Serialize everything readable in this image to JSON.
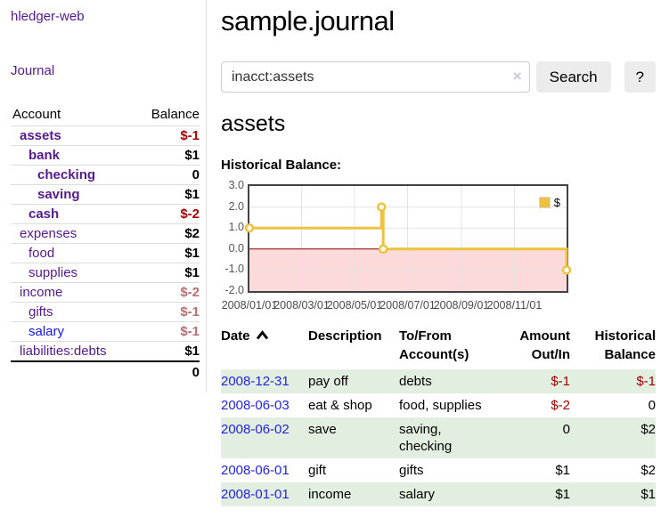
{
  "app": {
    "title": "hledger-web"
  },
  "colors": {
    "accent_purple": "#551a8b",
    "link_blue": "#1515e0",
    "negative_red": "#a40000",
    "faded_negative": "#b86f6f",
    "row_stripe_green": "#e2eedf",
    "series_gold": "#edc240",
    "negative_region_pink": "#fcdada",
    "zero_line_red": "#8b0000"
  },
  "sidebar": {
    "journal_link": "Journal",
    "accounts_table": {
      "headers": {
        "account": "Account",
        "balance": "Balance"
      },
      "rows": [
        {
          "name": "assets",
          "indent": 1,
          "bold": true,
          "blue": false,
          "balance": "$-1",
          "balance_style": "negstrong"
        },
        {
          "name": "bank",
          "indent": 2,
          "bold": true,
          "blue": false,
          "balance": "$1",
          "balance_style": "normal"
        },
        {
          "name": "checking",
          "indent": 3,
          "bold": true,
          "blue": false,
          "balance": "0",
          "balance_style": "normal"
        },
        {
          "name": "saving",
          "indent": 3,
          "bold": true,
          "blue": false,
          "balance": "$1",
          "balance_style": "normal"
        },
        {
          "name": "cash",
          "indent": 2,
          "bold": true,
          "blue": false,
          "balance": "$-2",
          "balance_style": "negstrong"
        },
        {
          "name": "expenses",
          "indent": 1,
          "bold": false,
          "blue": false,
          "balance": "$2",
          "balance_style": "normal"
        },
        {
          "name": "food",
          "indent": 2,
          "bold": false,
          "blue": false,
          "balance": "$1",
          "balance_style": "normal"
        },
        {
          "name": "supplies",
          "indent": 2,
          "bold": false,
          "blue": false,
          "balance": "$1",
          "balance_style": "normal"
        },
        {
          "name": "income",
          "indent": 1,
          "bold": false,
          "blue": false,
          "balance": "$-2",
          "balance_style": "negfaded"
        },
        {
          "name": "gifts",
          "indent": 2,
          "bold": false,
          "blue": false,
          "balance": "$-1",
          "balance_style": "negfaded"
        },
        {
          "name": "salary",
          "indent": 2,
          "bold": false,
          "blue": true,
          "balance": "$-1",
          "balance_style": "negfaded"
        },
        {
          "name": "liabilities:debts",
          "indent": 1,
          "bold": false,
          "blue": false,
          "balance": "$1",
          "balance_style": "normal"
        }
      ],
      "total": "0"
    }
  },
  "main": {
    "title": "sample.journal",
    "search": {
      "value": "inacct:assets",
      "clear_icon": "×",
      "button": "Search",
      "help_button": "?"
    },
    "account_heading": "assets"
  },
  "chart_data": {
    "type": "line",
    "title": "Historical Balance:",
    "step": true,
    "series": [
      {
        "name": "$",
        "color": "#edc240",
        "points": [
          {
            "date": "2008-01-01",
            "value": 1
          },
          {
            "date": "2008-06-01",
            "value": 2
          },
          {
            "date": "2008-06-03",
            "value": 0
          },
          {
            "date": "2008-12-31",
            "value": -1
          }
        ]
      }
    ],
    "x_domain": [
      "2008-01-01",
      "2008-12-31"
    ],
    "ylim": [
      -2,
      3
    ],
    "yticks": [
      "3.0",
      "2.0",
      "1.0",
      "0.0",
      "-1.0",
      "-2.0"
    ],
    "xticks": [
      {
        "date": "2008-01-01",
        "label": "2008/01/01"
      },
      {
        "date": "2008-03-01",
        "label": "2008/03/01"
      },
      {
        "date": "2008-05-01",
        "label": "2008/05/01"
      },
      {
        "date": "2008-07-01",
        "label": "2008/07/01"
      },
      {
        "date": "2008-09-01",
        "label": "2008/09/01"
      },
      {
        "date": "2008-11-01",
        "label": "2008/11/01"
      }
    ],
    "legend": {
      "label": "$",
      "position": "top-right"
    },
    "grid": true,
    "negative_region_color": "#fcdada",
    "zero_line_color": "#8b0000"
  },
  "transactions": {
    "headers": {
      "date": "Date",
      "description": "Description",
      "tofrom_1": "To/From",
      "tofrom_2": "Account(s)",
      "amount_1": "Amount",
      "amount_2": "Out/In",
      "balance_1": "Historical",
      "balance_2": "Balance"
    },
    "rows": [
      {
        "date": "2008-12-31",
        "description": "pay off",
        "accounts": "debts",
        "amount": "$-1",
        "amount_neg": true,
        "balance": "$-1",
        "balance_neg": true,
        "shaded": true
      },
      {
        "date": "2008-06-03",
        "description": "eat & shop",
        "accounts": "food, supplies",
        "amount": "$-2",
        "amount_neg": true,
        "balance": "0",
        "balance_neg": false,
        "shaded": false
      },
      {
        "date": "2008-06-02",
        "description": "save",
        "accounts": "saving, checking",
        "amount": "0",
        "amount_neg": false,
        "balance": "$2",
        "balance_neg": false,
        "shaded": true
      },
      {
        "date": "2008-06-01",
        "description": "gift",
        "accounts": "gifts",
        "amount": "$1",
        "amount_neg": false,
        "balance": "$2",
        "balance_neg": false,
        "shaded": false
      },
      {
        "date": "2008-01-01",
        "description": "income",
        "accounts": "salary",
        "amount": "$1",
        "amount_neg": false,
        "balance": "$1",
        "balance_neg": false,
        "shaded": true
      }
    ]
  }
}
